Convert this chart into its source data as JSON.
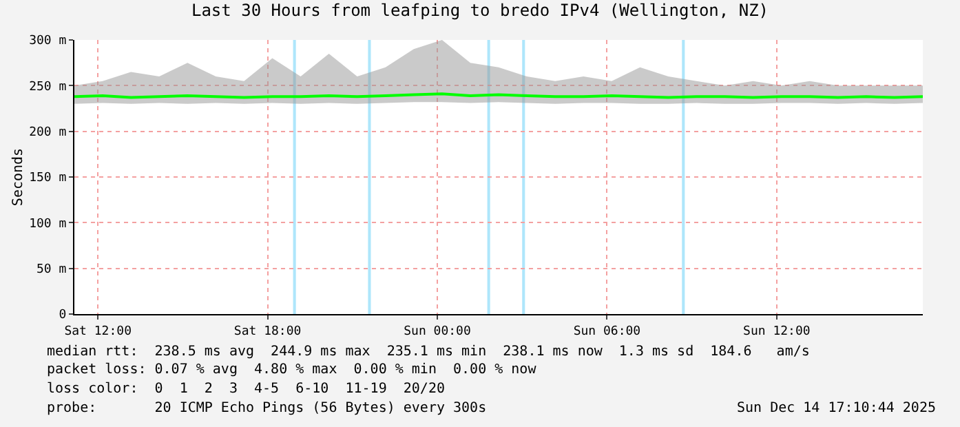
{
  "chart_data": {
    "type": "line",
    "title": "Last 30 Hours from leafping to bredo IPv4 (Wellington, NZ)",
    "ylabel": "Seconds",
    "x": [
      "2025-12-13T11:10",
      "2025-12-13T12:10",
      "2025-12-13T13:10",
      "2025-12-13T14:10",
      "2025-12-13T15:10",
      "2025-12-13T16:10",
      "2025-12-13T17:10",
      "2025-12-13T18:10",
      "2025-12-13T19:10",
      "2025-12-13T20:10",
      "2025-12-13T21:10",
      "2025-12-13T22:10",
      "2025-12-13T23:10",
      "2025-12-14T00:10",
      "2025-12-14T01:10",
      "2025-12-14T02:10",
      "2025-12-14T03:10",
      "2025-12-14T04:10",
      "2025-12-14T05:10",
      "2025-12-14T06:10",
      "2025-12-14T07:10",
      "2025-12-14T08:10",
      "2025-12-14T09:10",
      "2025-12-14T10:10",
      "2025-12-14T11:10",
      "2025-12-14T12:10",
      "2025-12-14T13:10",
      "2025-12-14T14:10",
      "2025-12-14T15:10",
      "2025-12-14T16:10",
      "2025-12-14T17:10"
    ],
    "series": [
      {
        "color": "#00ff00",
        "values": [
          238,
          239,
          237,
          238,
          239,
          238,
          237,
          238,
          238,
          239,
          238,
          239,
          240,
          241,
          239,
          240,
          239,
          238,
          238,
          239,
          238,
          237,
          238,
          238,
          237,
          238,
          238,
          237,
          238,
          237,
          238
        ],
        "lower": [
          230,
          231,
          230,
          231,
          230,
          231,
          230,
          231,
          230,
          231,
          230,
          231,
          232,
          232,
          231,
          232,
          231,
          230,
          231,
          231,
          230,
          230,
          231,
          230,
          230,
          231,
          231,
          230,
          231,
          230,
          231
        ],
        "upper": [
          250,
          255,
          265,
          260,
          275,
          260,
          255,
          280,
          260,
          285,
          260,
          270,
          290,
          300,
          275,
          270,
          260,
          255,
          260,
          255,
          270,
          260,
          255,
          250,
          255,
          250,
          255,
          250,
          250,
          250,
          250
        ]
      }
    ],
    "xlim": [
      "2025-12-13T11:10",
      "2025-12-14T17:10"
    ],
    "xticks": [
      {
        "value": "2025-12-13T12:00",
        "label": "Sat 12:00"
      },
      {
        "value": "2025-12-13T18:00",
        "label": "Sat 18:00"
      },
      {
        "value": "2025-12-14T00:00",
        "label": "Sun 00:00"
      },
      {
        "value": "2025-12-14T06:00",
        "label": "Sun 06:00"
      },
      {
        "value": "2025-12-14T12:00",
        "label": "Sun 12:00"
      }
    ],
    "ylim": [
      0,
      300
    ],
    "yticks": [
      0,
      {
        "value": 50,
        "label": "50 m"
      },
      {
        "value": 100,
        "label": "100 m"
      },
      {
        "value": 150,
        "label": "150 m"
      },
      {
        "value": 200,
        "label": "200 m"
      },
      {
        "value": 250,
        "label": "250 m"
      },
      {
        "value": 300,
        "label": "300 m"
      }
    ],
    "bands": [
      {
        "axis": "x",
        "from": "2025-12-13T18:54",
        "to": "2025-12-13T19:00",
        "color": "#aee6fb"
      },
      {
        "axis": "x",
        "from": "2025-12-13T21:33",
        "to": "2025-12-13T21:39",
        "color": "#aee6fb"
      },
      {
        "axis": "x",
        "from": "2025-12-14T01:46",
        "to": "2025-12-14T01:52",
        "color": "#aee6fb"
      },
      {
        "axis": "x",
        "from": "2025-12-14T03:00",
        "to": "2025-12-14T03:06",
        "color": "#aee6fb"
      },
      {
        "axis": "x",
        "from": "2025-12-14T08:39",
        "to": "2025-12-14T08:45",
        "color": "#aee6fb"
      }
    ],
    "grid": true,
    "marker": "none",
    "line_style": "solid",
    "annotations": [
      "median rtt:  238.5 ms avg  244.9 ms max  235.1 ms min  238.1 ms now  1.3 ms sd  184.6   am/s",
      "packet loss: 0.07 % avg  4.80 % max  0.00 % min  0.00 % now",
      "loss color:  0  1  2  3  4-5  6-10  11-19  20/20",
      "probe:       20 ICMP Echo Pings (56 Bytes) every 300s",
      "Sun Dec 14 17:10:44 2025"
    ]
  }
}
